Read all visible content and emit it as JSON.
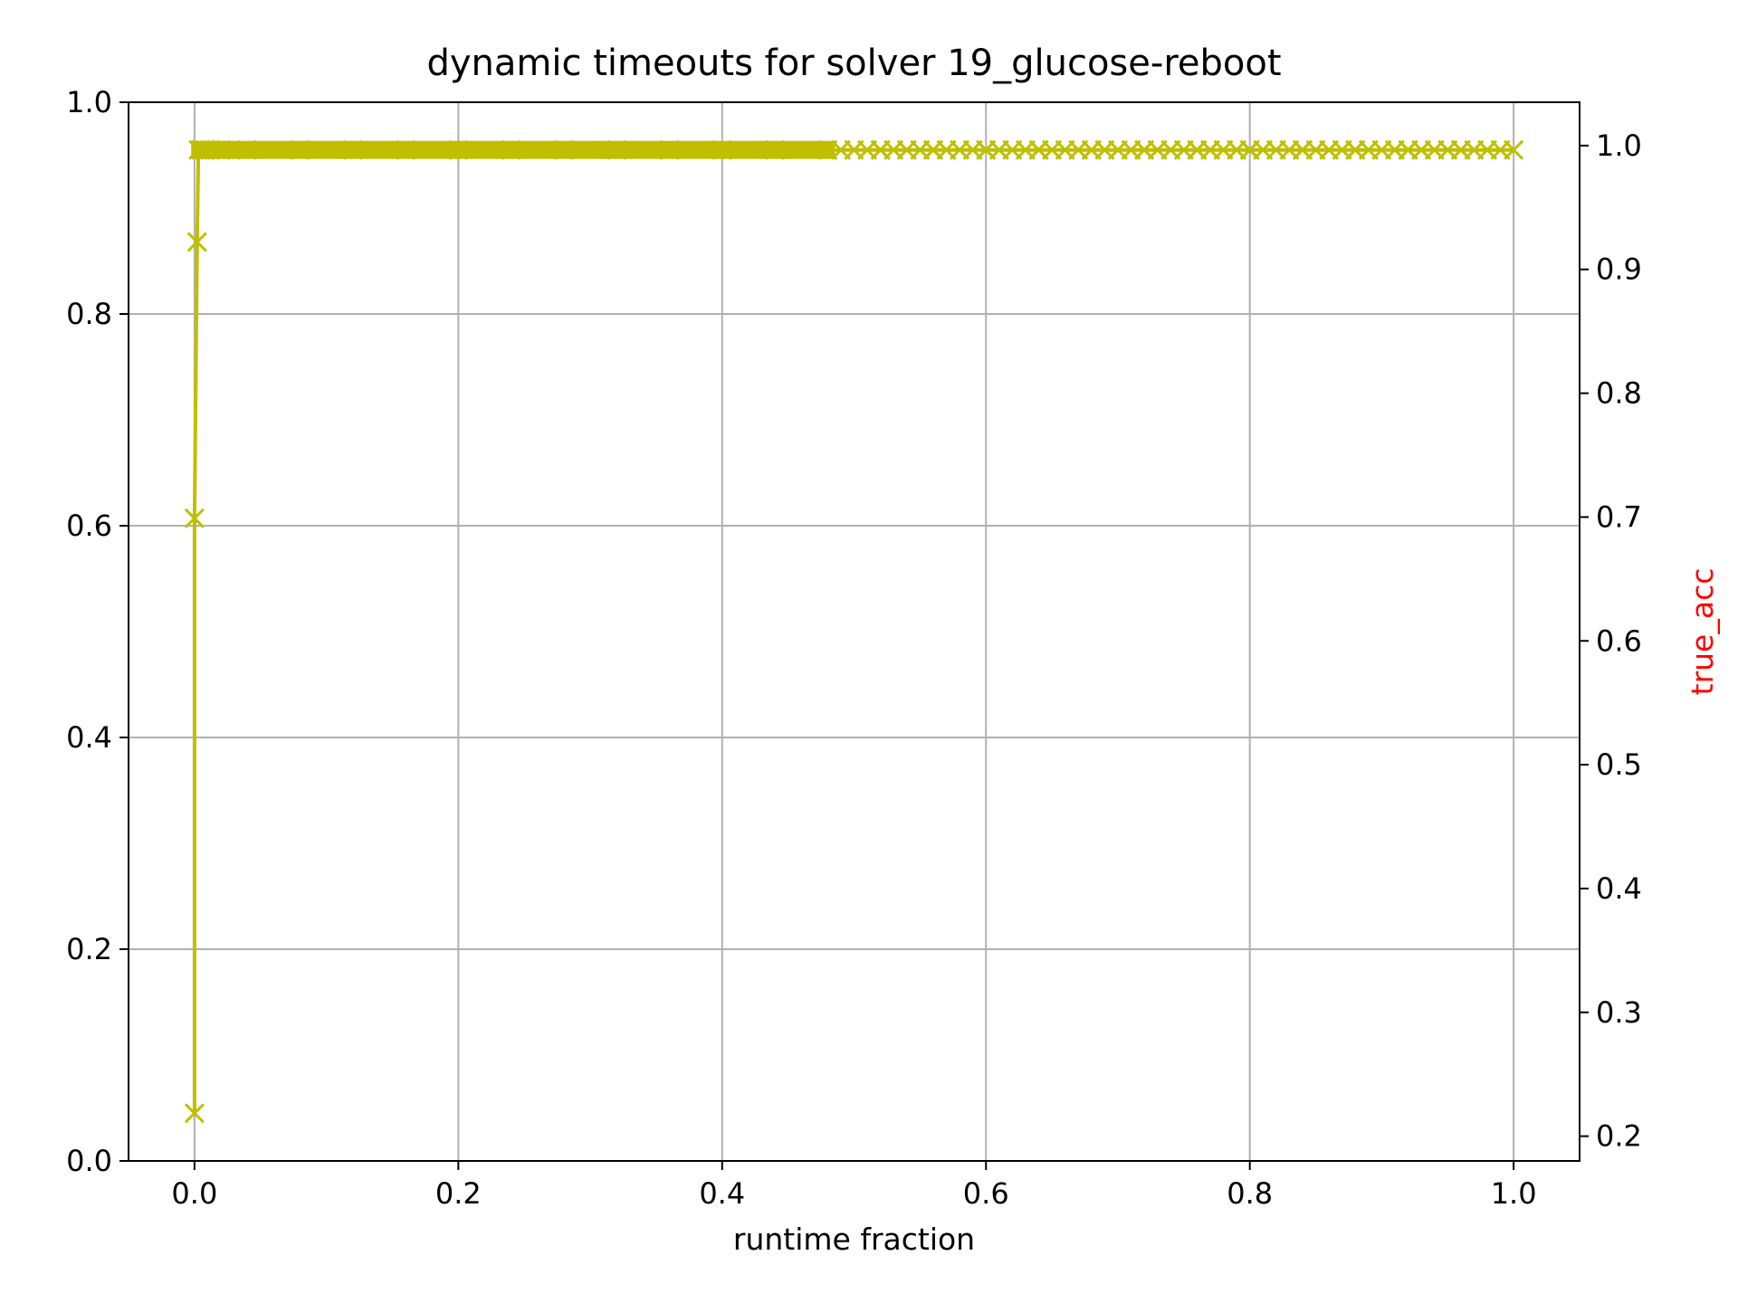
{
  "chart_data": {
    "type": "line",
    "title": "dynamic timeouts for solver 19_glucose-reboot",
    "xlabel": "runtime fraction",
    "ylabel": "",
    "ylabel_right": "true_acc",
    "xlim": [
      -0.05,
      1.05
    ],
    "ylim": [
      0.0,
      1.0
    ],
    "ylim_right": [
      0.18,
      1.035
    ],
    "x_ticks": [
      "0.0",
      "0.2",
      "0.4",
      "0.6",
      "0.8",
      "1.0"
    ],
    "y_ticks": [
      "0.0",
      "0.2",
      "0.4",
      "0.6",
      "0.8",
      "1.0"
    ],
    "y_ticks_right": [
      "0.2",
      "0.3",
      "0.4",
      "0.5",
      "0.6",
      "0.7",
      "0.8",
      "0.9",
      "1.0"
    ],
    "grid": true,
    "marker": "x",
    "colors": {
      "series": "#bfbf00",
      "right_label": "#ff0000",
      "grid": "#b0b0b0",
      "axes": "#000000"
    },
    "series": [
      {
        "x": [
          0.0,
          0.0,
          0.002,
          0.003,
          0.005,
          0.008,
          0.012,
          0.02,
          0.04,
          0.08,
          0.12,
          0.16,
          0.2,
          0.24,
          0.28,
          0.32,
          0.36,
          0.4,
          0.44,
          0.48,
          0.52,
          0.56,
          0.6,
          0.64,
          0.68,
          0.72,
          0.76,
          0.8,
          0.84,
          0.88,
          0.92,
          0.96,
          1.0
        ],
        "y": [
          0.045,
          0.607,
          0.868,
          0.955,
          0.955,
          0.955,
          0.955,
          0.955,
          0.955,
          0.955,
          0.955,
          0.955,
          0.955,
          0.955,
          0.955,
          0.955,
          0.955,
          0.955,
          0.955,
          0.955,
          0.955,
          0.955,
          0.955,
          0.955,
          0.955,
          0.955,
          0.955,
          0.955,
          0.955,
          0.955,
          0.955,
          0.955,
          0.955
        ]
      }
    ]
  }
}
